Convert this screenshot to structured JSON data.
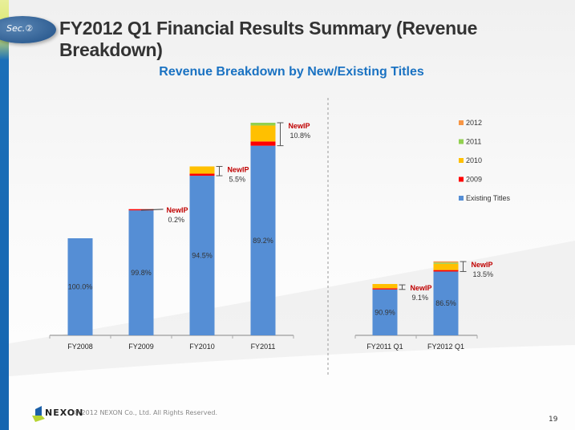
{
  "header": {
    "section_badge": "Sec.②",
    "title": "FY2012 Q1 Financial Results Summary (Revenue Breakdown)"
  },
  "footer": {
    "brand": "NEXON",
    "copyright": "© 2012 NEXON Co., Ltd. All Rights Reserved.",
    "page_number": "19"
  },
  "chart_data": {
    "type": "bar",
    "stacked": true,
    "title": "Revenue Breakdown by New/Existing Titles",
    "xlabel": "",
    "ylabel": "",
    "y_axis_shown": false,
    "grid": false,
    "legend_position": "right",
    "categories": [
      "FY2008",
      "FY2009",
      "FY2010",
      "FY2011",
      "FY2011 Q1",
      "FY2012 Q1"
    ],
    "relative_total": [
      100,
      129,
      174,
      219,
      52,
      76
    ],
    "series": [
      {
        "name": "Existing Titles",
        "color": "#558ed5",
        "values": [
          100.0,
          99.8,
          94.5,
          89.2,
          90.9,
          86.5
        ]
      },
      {
        "name": "2009",
        "color": "#ff0000",
        "values": [
          0,
          0.2,
          1.2,
          2.0,
          0.7,
          2.0
        ]
      },
      {
        "name": "2010",
        "color": "#ffc000",
        "values": [
          0,
          0,
          4.3,
          7.5,
          8.4,
          8.5
        ]
      },
      {
        "name": "2011",
        "color": "#92d050",
        "values": [
          0,
          0,
          0,
          1.3,
          0,
          1.5
        ]
      },
      {
        "name": "2012",
        "color": "#f79646",
        "values": [
          0,
          0,
          0,
          0,
          0,
          1.5
        ]
      }
    ],
    "legend_order": [
      "2012",
      "2011",
      "2010",
      "2009",
      "Existing Titles"
    ],
    "existing_labels": [
      "100.0%",
      "99.8%",
      "94.5%",
      "89.2%",
      "90.9%",
      "86.5%"
    ],
    "newip_label": "NewIP",
    "newip_values": [
      null,
      "0.2%",
      "5.5%",
      "10.8%",
      "9.1%",
      "13.5%"
    ]
  }
}
